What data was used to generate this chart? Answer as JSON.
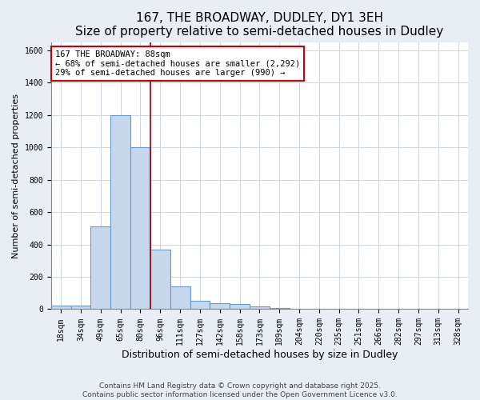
{
  "title": "167, THE BROADWAY, DUDLEY, DY1 3EH",
  "subtitle": "Size of property relative to semi-detached houses in Dudley",
  "xlabel": "Distribution of semi-detached houses by size in Dudley",
  "ylabel": "Number of semi-detached properties",
  "bar_labels": [
    "18sqm",
    "34sqm",
    "49sqm",
    "65sqm",
    "80sqm",
    "96sqm",
    "111sqm",
    "127sqm",
    "142sqm",
    "158sqm",
    "173sqm",
    "189sqm",
    "204sqm",
    "220sqm",
    "235sqm",
    "251sqm",
    "266sqm",
    "282sqm",
    "297sqm",
    "313sqm",
    "328sqm"
  ],
  "bar_values": [
    20,
    20,
    510,
    1200,
    1000,
    370,
    140,
    50,
    35,
    30,
    15,
    5,
    1,
    0,
    0,
    0,
    0,
    0,
    0,
    0,
    0
  ],
  "bar_color": "#c8d8ec",
  "bar_edge_color": "#6699cc",
  "marker_label_title": "167 THE BROADWAY: 88sqm",
  "marker_label_line1": "← 68% of semi-detached houses are smaller (2,292)",
  "marker_label_line2": "29% of semi-detached houses are larger (990) →",
  "vline_color": "#990000",
  "annotation_box_edge": "#cc0000",
  "vline_position": 4.5,
  "ylim": [
    0,
    1650
  ],
  "yticks": [
    0,
    200,
    400,
    600,
    800,
    1000,
    1200,
    1400,
    1600
  ],
  "footnote1": "Contains HM Land Registry data © Crown copyright and database right 2025.",
  "footnote2": "Contains public sector information licensed under the Open Government Licence v3.0.",
  "bg_color": "#e8eef4",
  "plot_bg_color": "#ffffff",
  "title_fontsize": 11,
  "subtitle_fontsize": 9.5,
  "xlabel_fontsize": 9,
  "ylabel_fontsize": 8,
  "tick_fontsize": 7,
  "annotation_fontsize": 7.5,
  "footnote_fontsize": 6.5
}
